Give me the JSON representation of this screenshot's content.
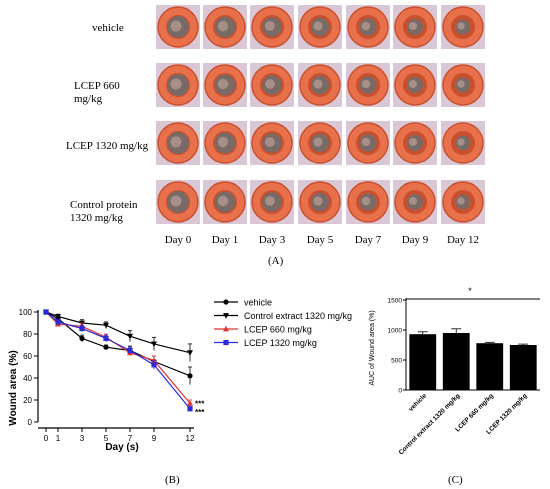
{
  "panel_a": {
    "row_labels": [
      "vehicle",
      "LCEP 660\nmg/kg",
      "LCEP 1320 mg/kg",
      "Control protein\n1320 mg/kg"
    ],
    "day_labels": [
      "Day 0",
      "Day 1",
      "Day 3",
      "Day 5",
      "Day 7",
      "Day 9",
      "Day 12"
    ],
    "label": "(A)",
    "colors": {
      "ring": "#e8704a",
      "ring_dark": "#c9502e",
      "wound": "#7a6a66",
      "bg": "#d9c7d6"
    }
  },
  "panel_b_label": "(B)",
  "panel_c_label": "(C)",
  "chart_data": [
    {
      "type": "line",
      "xlabel": "Day (s)",
      "ylabel": "Wound area (%)",
      "x": [
        0,
        1,
        3,
        5,
        7,
        9,
        12
      ],
      "xticks": [
        "0",
        "1",
        "3",
        "5",
        "7",
        "9",
        "12"
      ],
      "yticks": [
        "0",
        "20",
        "40",
        "60",
        "80",
        "100"
      ],
      "ylim": [
        0,
        100
      ],
      "legend_position": "top-right",
      "significance": [
        "***",
        "***"
      ],
      "series": [
        {
          "name": "vehicle",
          "color": "#000000",
          "marker": "circle",
          "values": [
            100,
            94,
            76,
            68,
            65,
            55,
            42
          ],
          "err": [
            0,
            2,
            3,
            2,
            4,
            5,
            8
          ]
        },
        {
          "name": "Control extract 1320 mg/kg",
          "color": "#000000",
          "marker": "triangle-down",
          "values": [
            100,
            96,
            90,
            88,
            78,
            71,
            63
          ],
          "err": [
            0,
            2,
            3,
            3,
            5,
            6,
            8
          ]
        },
        {
          "name": "LCEP 660 mg/kg",
          "color": "#e03030",
          "marker": "triangle-up",
          "values": [
            100,
            89,
            87,
            77,
            63,
            56,
            17
          ],
          "err": [
            0,
            2,
            3,
            3,
            3,
            4,
            3
          ]
        },
        {
          "name": "LCEP 1320 mg/kg",
          "color": "#2a2ad6",
          "marker": "square",
          "values": [
            100,
            91,
            85,
            76,
            65,
            52,
            12
          ],
          "err": [
            0,
            2,
            3,
            3,
            3,
            4,
            2
          ]
        }
      ]
    },
    {
      "type": "bar",
      "ylabel": "AUC of Wound area (%)",
      "categories": [
        "vehicle",
        "Control extract 1320 mg/kg",
        "LCEP 660 mg/kg",
        "LCEP 1320 mg/kg"
      ],
      "values": [
        930,
        950,
        780,
        750
      ],
      "err": [
        40,
        70,
        15,
        15
      ],
      "yticks": [
        "0",
        "500",
        "1000",
        "1500"
      ],
      "ylim": [
        0,
        1500
      ],
      "significance": "*",
      "bar_color": "#000000"
    }
  ]
}
